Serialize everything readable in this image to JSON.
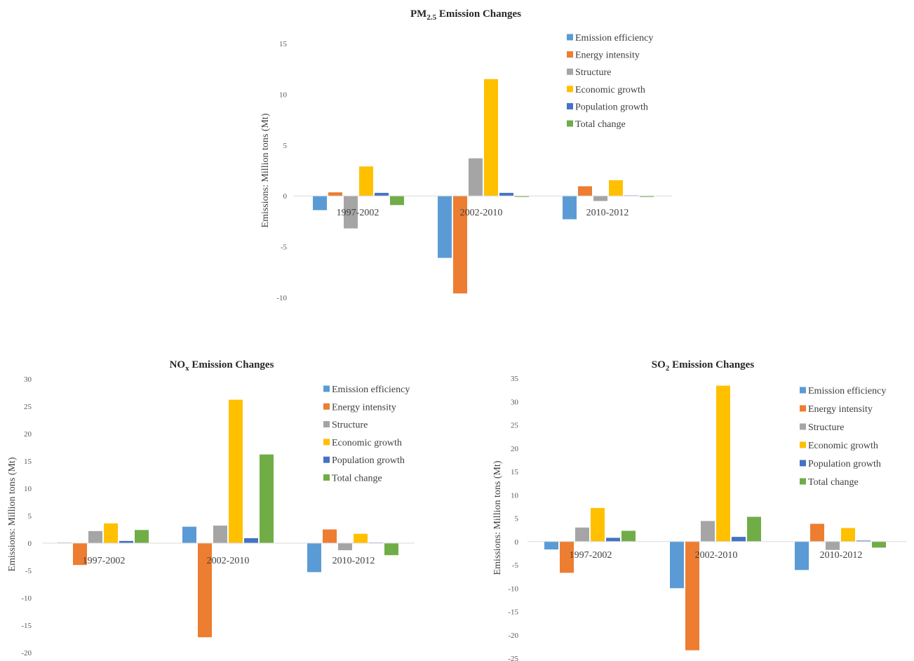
{
  "colors": {
    "Emission efficiency": "#5B9BD5",
    "Energy intensity": "#ED7D31",
    "Structure": "#A5A5A5",
    "Economic growth": "#FFC000",
    "Population growth": "#4472C4",
    "Total change": "#70AD47"
  },
  "chart_data": [
    {
      "type": "bar",
      "title_main": "PM",
      "title_sub": "2.5",
      "title_rest": " Emission Changes",
      "ylabel": "Emissions: Million tons (Mt)",
      "categories": [
        "1997-2002",
        "2002-2010",
        "2010-2012"
      ],
      "yticks": [
        15,
        10,
        5,
        0,
        -5,
        -10
      ],
      "ylim": [
        -10,
        15
      ],
      "legend_position": "top-right",
      "grid": false,
      "series": [
        {
          "name": "Emission efficiency",
          "values": [
            -1.4,
            -6.1,
            -2.3
          ]
        },
        {
          "name": "Energy intensity",
          "values": [
            0.35,
            -9.6,
            0.95
          ]
        },
        {
          "name": "Structure",
          "values": [
            -3.2,
            3.7,
            -0.5
          ]
        },
        {
          "name": "Economic growth",
          "values": [
            2.9,
            11.5,
            1.55
          ]
        },
        {
          "name": "Population growth",
          "values": [
            0.3,
            0.3,
            0.05
          ]
        },
        {
          "name": "Total change",
          "values": [
            -0.9,
            -0.1,
            -0.1
          ]
        }
      ]
    },
    {
      "type": "bar",
      "title_main": "NO",
      "title_sub": "x",
      "title_rest": " Emission  Changes",
      "ylabel": "Emissions: Million tons (Mt)",
      "categories": [
        "1997-2002",
        "2002-2010",
        "2010-2012"
      ],
      "yticks": [
        30,
        25,
        20,
        15,
        10,
        5,
        0,
        -5,
        -10,
        -15,
        -20
      ],
      "ylim": [
        -20,
        30
      ],
      "legend_position": "top-right",
      "grid": false,
      "series": [
        {
          "name": "Emission efficiency",
          "values": [
            0.1,
            3.0,
            -5.3
          ]
        },
        {
          "name": "Energy intensity",
          "values": [
            -4.0,
            -17.2,
            2.5
          ]
        },
        {
          "name": "Structure",
          "values": [
            2.2,
            3.2,
            -1.3
          ]
        },
        {
          "name": "Economic growth",
          "values": [
            3.6,
            26.2,
            1.7
          ]
        },
        {
          "name": "Population growth",
          "values": [
            0.4,
            0.9,
            0.1
          ]
        },
        {
          "name": "Total change",
          "values": [
            2.4,
            16.2,
            -2.2
          ]
        }
      ]
    },
    {
      "type": "bar",
      "title_main": "SO",
      "title_sub": "2",
      "title_rest": " Emission Changes",
      "ylabel": "Emissions: Million tons (Mt)",
      "categories": [
        "1997-2002",
        "2002-2010",
        "2010-2012"
      ],
      "yticks": [
        35,
        30,
        25,
        20,
        15,
        10,
        5,
        0,
        -5,
        -10,
        -15,
        -20,
        -25
      ],
      "ylim": [
        -25,
        35
      ],
      "legend_position": "top-right",
      "grid": false,
      "series": [
        {
          "name": "Emission efficiency",
          "values": [
            -1.7,
            -10.0,
            -6.1
          ]
        },
        {
          "name": "Energy intensity",
          "values": [
            -6.7,
            -23.3,
            3.8
          ]
        },
        {
          "name": "Structure",
          "values": [
            3.0,
            4.4,
            -1.8
          ]
        },
        {
          "name": "Economic growth",
          "values": [
            7.2,
            33.4,
            2.9
          ]
        },
        {
          "name": "Population growth",
          "values": [
            0.8,
            1.0,
            0.2
          ]
        },
        {
          "name": "Total change",
          "values": [
            2.3,
            5.3,
            -1.3
          ]
        }
      ]
    }
  ]
}
